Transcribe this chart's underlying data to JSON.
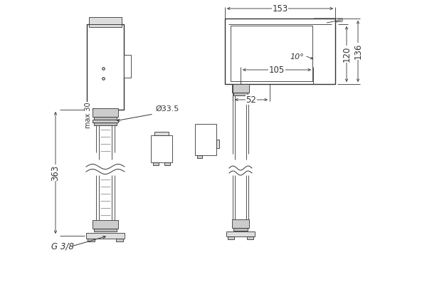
{
  "bg_color": "#ffffff",
  "line_color": "#333333",
  "dim_color": "#333333",
  "annotations": {
    "dim_363": "363",
    "dim_30": "max 30",
    "dim_G38": "G 3/8",
    "dim_d335": "Ø33.5",
    "dim_153": "153",
    "dim_105": "105",
    "dim_52": "52",
    "dim_120": "120",
    "dim_136": "136",
    "dim_10deg": "10°"
  }
}
